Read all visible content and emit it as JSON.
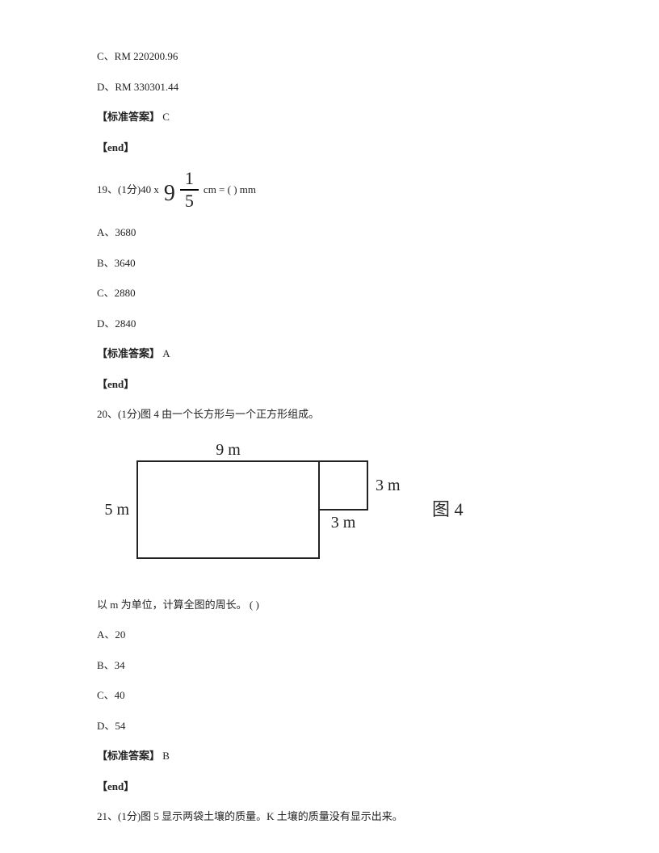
{
  "q18_tail": {
    "optC": "C、RM 220200.96",
    "optD": "D、RM 330301.44",
    "ans_label": "【标准答案】",
    "ans": "C",
    "end": "【end】"
  },
  "q19": {
    "prefix": "19、(1分)40 x",
    "whole": "9",
    "numerator": "1",
    "denominator": "5",
    "suffix": "cm = ( ) mm",
    "optA": "A、3680",
    "optB": "B、3640",
    "optC": "C、2880",
    "optD": "D、2840",
    "ans_label": "【标准答案】",
    "ans": "A",
    "end": "【end】"
  },
  "q20": {
    "stem": "20、(1分)图 4 由一个长方形与一个正方形组成。",
    "fig": {
      "top_label": "9 m",
      "left_label": "5 m",
      "right_label": "3 m",
      "bottom_label": "3 m",
      "rect_w": 225,
      "rect_h": 120,
      "sq_size": 60,
      "stroke": "#222222",
      "stroke_width": 2,
      "label_fontsize": 20,
      "label_color": "#222222"
    },
    "fig_label": "图 4",
    "prompt": "以 m 为单位，计算全图的周长。 ( )",
    "optA": "A、20",
    "optB": "B、34",
    "optC": "C、40",
    "optD": "D、54",
    "ans_label": "【标准答案】",
    "ans": "B",
    "end": "【end】"
  },
  "q21": {
    "stem": "21、(1分)图 5 显示两袋土壤的质量。K 土壤的质量没有显示出来。"
  }
}
